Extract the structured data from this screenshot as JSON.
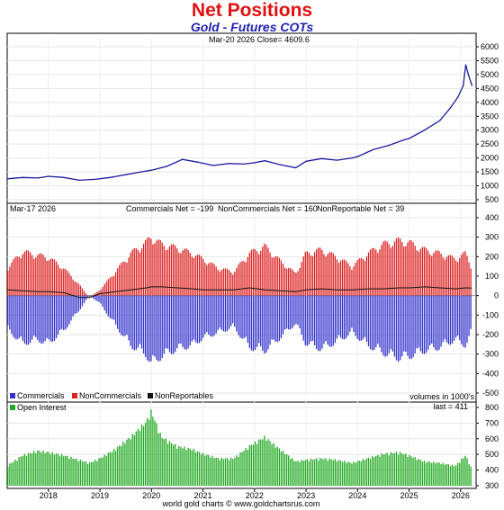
{
  "header": {
    "title": "Net Positions",
    "subtitle": "Gold - Futures COTs"
  },
  "price_panel": {
    "info": "Mar-20  2026   Close= 4609.6"
  },
  "positions_panel": {
    "date": "Mar-17  2026",
    "commercials_net": "Commercials Net = -199",
    "noncommercials_net": "NonCommercials Net = 160",
    "nonreportable_net": "NonReportable Net = 39",
    "legend": [
      "Commercials",
      "NonCommercials",
      "NonReportables"
    ],
    "units_note": "volumes in 1000's"
  },
  "oi_panel": {
    "legend": "Open Interest",
    "last": "last = 411"
  },
  "footer": "world gold charts © www.goldchartsrus.com",
  "colors": {
    "title": "#e01010",
    "subtitle": "#2020b0",
    "price_line": "#1a1aa0",
    "commercials": "#3333cc",
    "noncommercials": "#dd2222",
    "nonreportables": "#111111",
    "open_interest": "#22aa22"
  },
  "chart_data": [
    {
      "type": "line",
      "name": "Gold price",
      "xlim": [
        2017.2,
        2026.3
      ],
      "ylim": [
        500,
        6000
      ],
      "yticks": [
        500,
        1000,
        1500,
        2000,
        2500,
        3000,
        3500,
        4000,
        4500,
        5000,
        5500,
        6000
      ],
      "x": [
        2017.2,
        2017.5,
        2017.8,
        2018.0,
        2018.3,
        2018.6,
        2018.9,
        2019.2,
        2019.5,
        2019.8,
        2020.0,
        2020.3,
        2020.6,
        2020.9,
        2021.2,
        2021.5,
        2021.8,
        2022.0,
        2022.2,
        2022.5,
        2022.8,
        2023.0,
        2023.3,
        2023.6,
        2023.9,
        2024.0,
        2024.3,
        2024.6,
        2024.9,
        2025.0,
        2025.3,
        2025.6,
        2025.8,
        2025.95,
        2026.05,
        2026.1,
        2026.15,
        2026.22
      ],
      "y": [
        1250,
        1300,
        1280,
        1340,
        1300,
        1200,
        1230,
        1300,
        1400,
        1500,
        1560,
        1700,
        1950,
        1850,
        1730,
        1800,
        1780,
        1830,
        1900,
        1760,
        1650,
        1880,
        1980,
        1920,
        2000,
        2050,
        2300,
        2450,
        2650,
        2700,
        3000,
        3350,
        3800,
        4200,
        4600,
        5350,
        5000,
        4609.6
      ]
    },
    {
      "type": "bar",
      "name": "Net positions",
      "xlim": [
        2017.2,
        2026.3
      ],
      "ylim": [
        -500,
        400
      ],
      "yticks": [
        -500,
        -400,
        -300,
        -200,
        -100,
        0,
        100,
        200,
        300,
        400
      ],
      "x": [
        2017.2,
        2017.5,
        2017.8,
        2018.0,
        2018.3,
        2018.6,
        2018.8,
        2019.0,
        2019.3,
        2019.6,
        2019.9,
        2020.0,
        2020.2,
        2020.5,
        2020.8,
        2021.0,
        2021.3,
        2021.6,
        2021.9,
        2022.2,
        2022.5,
        2022.8,
        2023.0,
        2023.3,
        2023.6,
        2023.9,
        2024.2,
        2024.5,
        2024.8,
        2025.0,
        2025.3,
        2025.6,
        2025.9,
        2026.1,
        2026.22
      ],
      "series": [
        {
          "name": "NonCommercials",
          "values": [
            150,
            240,
            220,
            210,
            150,
            60,
            -10,
            30,
            130,
            230,
            290,
            320,
            280,
            260,
            230,
            200,
            150,
            130,
            230,
            270,
            190,
            120,
            230,
            250,
            210,
            160,
            230,
            280,
            300,
            290,
            250,
            230,
            200,
            230,
            160
          ]
        },
        {
          "name": "Commercials",
          "values": [
            -180,
            -260,
            -240,
            -260,
            -190,
            -80,
            0,
            -40,
            -160,
            -270,
            -320,
            -370,
            -330,
            -290,
            -270,
            -230,
            -200,
            -170,
            -280,
            -300,
            -230,
            -150,
            -260,
            -290,
            -250,
            -200,
            -270,
            -310,
            -340,
            -330,
            -300,
            -280,
            -240,
            -270,
            -199
          ]
        },
        {
          "name": "NonReportables",
          "values": [
            30,
            25,
            20,
            20,
            15,
            -10,
            -10,
            10,
            20,
            30,
            40,
            45,
            45,
            40,
            35,
            30,
            30,
            30,
            40,
            30,
            25,
            20,
            30,
            35,
            30,
            30,
            35,
            35,
            40,
            40,
            45,
            40,
            35,
            40,
            39
          ]
        }
      ]
    },
    {
      "type": "bar",
      "name": "Open Interest",
      "xlim": [
        2017.2,
        2026.3
      ],
      "ylim": [
        300,
        800
      ],
      "yticks": [
        300,
        400,
        500,
        600,
        700,
        800
      ],
      "xticks": [
        2018,
        2019,
        2020,
        2021,
        2022,
        2023,
        2024,
        2025,
        2026
      ],
      "x": [
        2017.2,
        2017.5,
        2017.8,
        2018.0,
        2018.3,
        2018.6,
        2018.8,
        2019.0,
        2019.3,
        2019.6,
        2019.9,
        2020.0,
        2020.2,
        2020.5,
        2020.8,
        2021.0,
        2021.3,
        2021.6,
        2021.9,
        2022.2,
        2022.5,
        2022.8,
        2023.0,
        2023.3,
        2023.6,
        2023.9,
        2024.2,
        2024.5,
        2024.8,
        2025.0,
        2025.3,
        2025.6,
        2025.9,
        2026.1,
        2026.22
      ],
      "values": [
        430,
        500,
        530,
        520,
        500,
        470,
        450,
        480,
        540,
        620,
        720,
        790,
        620,
        560,
        540,
        510,
        480,
        480,
        560,
        620,
        540,
        460,
        470,
        480,
        470,
        450,
        480,
        510,
        520,
        500,
        460,
        450,
        430,
        500,
        411
      ]
    }
  ]
}
